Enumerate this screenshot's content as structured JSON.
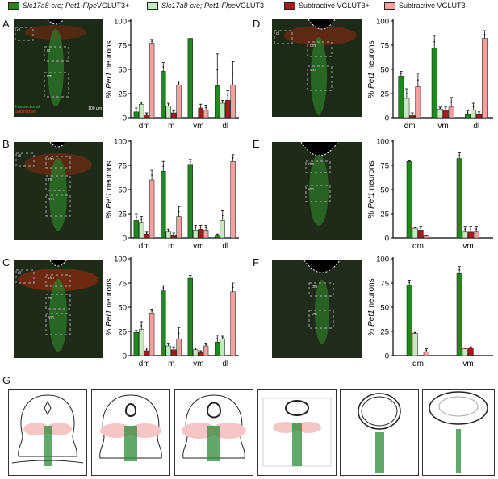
{
  "legend": [
    {
      "label": "Slc17a8-cre; Pet1-Flpe VGLUT3+",
      "italic_part": "Slc17a8-cre; Pet1-Flpe",
      "plain_part": " VGLUT3+",
      "color": "#1e8a1e"
    },
    {
      "label": "Slc17a8-cre; Pet1-Flpe VGLUT3-",
      "italic_part": "Slc17a8-cre; Pet1-Flpe",
      "plain_part": " VGLUT3-",
      "color": "#c8e8c0"
    },
    {
      "label": "Subtractive VGLUT3+",
      "italic_part": "",
      "plain_part": "Subtractive VGLUT3+",
      "color": "#a51c1c"
    },
    {
      "label": "Subtractive VGLUT3-",
      "italic_part": "",
      "plain_part": "Subtractive VGLUT3-",
      "color": "#f4a0a0"
    }
  ],
  "panel_labels": {
    "A": "A",
    "B": "B",
    "C": "C",
    "D": "D",
    "E": "E",
    "F": "F",
    "G": "G"
  },
  "micro_text": {
    "intersectional": "Intersectional",
    "subtractive": "Subtractive",
    "scalebar": "100 µm",
    "dl": "dl",
    "dm": "dm",
    "m": "m",
    "vm": "vm"
  },
  "series_colors": [
    "#1e8a1e",
    "#c8e8c0",
    "#a51c1c",
    "#f4a0a0"
  ],
  "chart_data": [
    {
      "panel": "A",
      "type": "bar",
      "ylabel_italic": "Pet1",
      "ylabel_rest": " neurons",
      "ylabel_prefix": "% ",
      "ylim": [
        0,
        100
      ],
      "yticks": [
        0,
        25,
        50,
        75,
        100
      ],
      "categories": [
        "dm",
        "m",
        "vm",
        "dl"
      ],
      "series": [
        {
          "values": [
            6,
            48,
            82,
            33
          ],
          "err": [
            4,
            9,
            0,
            33
          ]
        },
        {
          "values": [
            14,
            12,
            0,
            15
          ],
          "err": [
            2,
            3,
            0,
            3
          ]
        },
        {
          "values": [
            3,
            5,
            10,
            18
          ],
          "err": [
            2,
            2,
            4,
            10
          ]
        },
        {
          "values": [
            77,
            34,
            8,
            34
          ],
          "err": [
            4,
            4,
            5,
            24
          ]
        }
      ]
    },
    {
      "panel": "B",
      "type": "bar",
      "ylabel_italic": "Pet1",
      "ylabel_rest": " neurons",
      "ylabel_prefix": "% ",
      "ylim": [
        0,
        100
      ],
      "yticks": [
        0,
        25,
        50,
        75,
        100
      ],
      "categories": [
        "dm",
        "m",
        "vm",
        "dl"
      ],
      "series": [
        {
          "values": [
            18,
            69,
            76,
            2
          ],
          "err": [
            7,
            10,
            5,
            2
          ]
        },
        {
          "values": [
            16,
            6,
            8,
            18
          ],
          "err": [
            6,
            3,
            5,
            10
          ]
        },
        {
          "values": [
            4,
            3,
            9,
            0
          ],
          "err": [
            2,
            2,
            4,
            0
          ]
        },
        {
          "values": [
            60,
            22,
            8,
            79
          ],
          "err": [
            10,
            10,
            5,
            7
          ]
        }
      ]
    },
    {
      "panel": "C",
      "type": "bar",
      "ylabel_italic": "Pet1",
      "ylabel_rest": " neurons",
      "ylabel_prefix": "% ",
      "ylim": [
        0,
        100
      ],
      "yticks": [
        0,
        25,
        50,
        75,
        100
      ],
      "categories": [
        "dm",
        "m",
        "vm",
        "dl"
      ],
      "series": [
        {
          "values": [
            24,
            67,
            80,
            14
          ],
          "err": [
            2,
            6,
            3,
            7
          ]
        },
        {
          "values": [
            27,
            10,
            6,
            17
          ],
          "err": [
            8,
            3,
            2,
            3
          ]
        },
        {
          "values": [
            5,
            6,
            3,
            0
          ],
          "err": [
            3,
            3,
            2,
            0
          ]
        },
        {
          "values": [
            44,
            17,
            10,
            66
          ],
          "err": [
            4,
            12,
            3,
            9
          ]
        }
      ]
    },
    {
      "panel": "D",
      "type": "bar",
      "ylabel_italic": "Pet1",
      "ylabel_rest": " neurons",
      "ylabel_prefix": "% ",
      "ylim": [
        0,
        100
      ],
      "yticks": [
        0,
        25,
        50,
        75,
        100
      ],
      "categories": [
        "dm",
        "vm",
        "dl"
      ],
      "series": [
        {
          "values": [
            43,
            72,
            4
          ],
          "err": [
            5,
            13,
            3
          ]
        },
        {
          "values": [
            20,
            9,
            8
          ],
          "err": [
            10,
            2,
            7
          ]
        },
        {
          "values": [
            3,
            8,
            4
          ],
          "err": [
            2,
            3,
            2
          ]
        },
        {
          "values": [
            32,
            11,
            82
          ],
          "err": [
            14,
            10,
            8
          ]
        }
      ]
    },
    {
      "panel": "E",
      "type": "bar",
      "ylabel_italic": "Pet1",
      "ylabel_rest": " neurons",
      "ylabel_prefix": "% ",
      "ylim": [
        0,
        100
      ],
      "yticks": [
        0,
        25,
        50,
        75,
        100
      ],
      "categories": [
        "dm",
        "vm"
      ],
      "series": [
        {
          "values": [
            79,
            82
          ],
          "err": [
            1,
            6
          ]
        },
        {
          "values": [
            10,
            6
          ],
          "err": [
            1,
            6
          ]
        },
        {
          "values": [
            8,
            6
          ],
          "err": [
            4,
            6
          ]
        },
        {
          "values": [
            2,
            6
          ],
          "err": [
            1,
            6
          ]
        }
      ]
    },
    {
      "panel": "F",
      "type": "bar",
      "ylabel_italic": "Pet1",
      "ylabel_rest": " neurons",
      "ylabel_prefix": "% ",
      "ylim": [
        0,
        100
      ],
      "yticks": [
        0,
        25,
        50,
        75,
        100
      ],
      "categories": [
        "dm",
        "vm"
      ],
      "series": [
        {
          "values": [
            73,
            85
          ],
          "err": [
            5,
            7
          ]
        },
        {
          "values": [
            23,
            7
          ],
          "err": [
            1,
            1
          ]
        },
        {
          "values": [
            0,
            8
          ],
          "err": [
            0,
            1
          ]
        },
        {
          "values": [
            4,
            0
          ],
          "err": [
            3,
            0
          ]
        }
      ]
    }
  ]
}
